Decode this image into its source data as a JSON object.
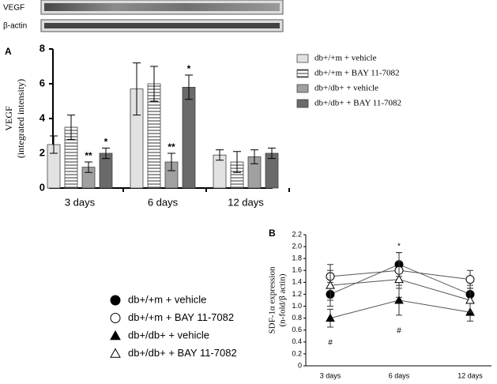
{
  "blot_labels": [
    "VEGF",
    "β-actin"
  ],
  "chart_data": [
    {
      "type": "bar",
      "panel_label": "A",
      "y_label": [
        "VEGF",
        "(integrated intensity)"
      ],
      "categories": [
        "3 days",
        "6 days",
        "12 days"
      ],
      "ylim": [
        0,
        8
      ],
      "yticks": [
        0,
        2,
        4,
        6,
        8
      ],
      "series": [
        {
          "name": "db+/+m + vehicle",
          "color": "#e2e2e2",
          "pattern": "solid",
          "values": [
            2.5,
            5.7,
            1.9
          ],
          "errors": [
            0.5,
            1.5,
            0.3
          ],
          "significance": [
            null,
            null,
            null
          ]
        },
        {
          "name": "db+/+m + BAY 11-7082",
          "color": "#ffffff",
          "pattern": "stripes",
          "values": [
            3.5,
            6.0,
            1.5
          ],
          "errors": [
            0.7,
            1.0,
            0.6
          ],
          "significance": [
            null,
            null,
            null
          ]
        },
        {
          "name": "db+/db+ + vehicle",
          "color": "#a0a0a0",
          "pattern": "solid",
          "values": [
            1.2,
            1.5,
            1.8
          ],
          "errors": [
            0.3,
            0.5,
            0.4
          ],
          "significance": [
            "**",
            "**",
            null
          ]
        },
        {
          "name": "db+/db+ + BAY 11-7082",
          "color": "#6a6a6a",
          "pattern": "solid",
          "values": [
            2.0,
            5.8,
            2.0
          ],
          "errors": [
            0.3,
            0.7,
            0.3
          ],
          "significance": [
            "*",
            "*",
            null
          ]
        }
      ]
    },
    {
      "type": "line",
      "panel_label": "B",
      "y_label": [
        "SDF-1α expression",
        "(n-fold/β actin)"
      ],
      "categories": [
        "3 days",
        "6 days",
        "12 days"
      ],
      "ylim": [
        0,
        2.2
      ],
      "yticks": [
        0,
        0.2,
        0.4,
        0.6,
        0.8,
        {
          "value": 1,
          "label": "1.0"
        },
        1.2,
        1.4,
        1.6,
        1.8,
        {
          "value": 2,
          "label": "2.0"
        },
        2.2
      ],
      "series": [
        {
          "name": "db+/+m + vehicle",
          "color": "#000000",
          "marker": "circle",
          "filled": true,
          "values": [
            1.2,
            1.7,
            1.2
          ],
          "errors": [
            0.2,
            0.2,
            0.15
          ],
          "significance": [
            null,
            "*",
            null
          ]
        },
        {
          "name": "db+/+m + BAY 11-7082",
          "color": "#000000",
          "marker": "circle",
          "filled": false,
          "values": [
            1.5,
            1.6,
            1.45
          ],
          "errors": [
            0.2,
            0.3,
            0.15
          ],
          "significance": [
            null,
            null,
            null
          ]
        },
        {
          "name": "db+/db+ + vehicle",
          "color": "#000000",
          "marker": "triangle",
          "filled": true,
          "values": [
            0.8,
            1.1,
            0.9
          ],
          "errors": [
            0.15,
            0.25,
            0.15
          ],
          "significance": [
            "#",
            "#",
            null
          ]
        },
        {
          "name": "db+/db+ + BAY 11-7082",
          "color": "#000000",
          "marker": "triangle",
          "filled": false,
          "values": [
            1.35,
            1.45,
            1.1
          ],
          "errors": [
            0.25,
            0.3,
            0.2
          ],
          "significance": [
            null,
            null,
            null
          ]
        }
      ]
    }
  ]
}
